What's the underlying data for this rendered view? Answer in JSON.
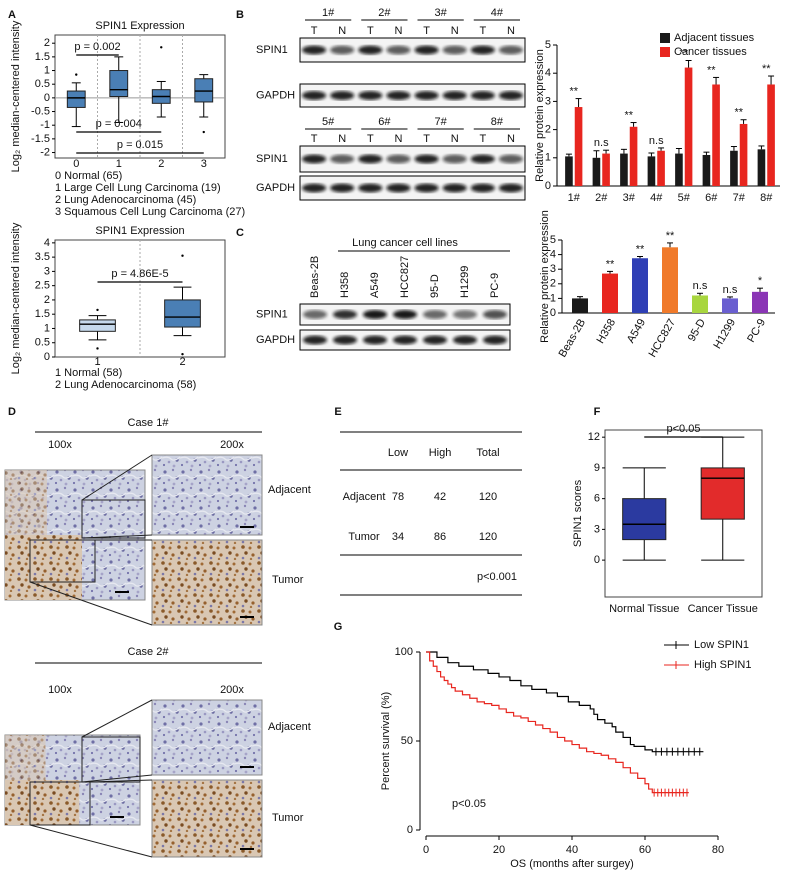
{
  "panel_labels": [
    "A",
    "B",
    "C",
    "D",
    "E",
    "F",
    "G"
  ],
  "chart_data": [
    {
      "type": "box",
      "title": "SPIN1 Expression",
      "ylabel": "Log₂ median-centered intensity",
      "categories": [
        "0",
        "1",
        "2",
        "3"
      ],
      "color": "#4a7fb5",
      "zero_line": true,
      "ylim": [
        -2.2,
        2.3
      ],
      "yticks": [
        -2,
        -1.5,
        -1,
        -0.5,
        0,
        0.5,
        1,
        1.5,
        2
      ],
      "boxes": [
        {
          "min": -1.05,
          "q1": -0.35,
          "median": 0,
          "q3": 0.25,
          "max": 0.55,
          "outliers": [
            0.85
          ]
        },
        {
          "min": -0.9,
          "q1": 0.05,
          "median": 0.3,
          "q3": 1.0,
          "max": 1.5,
          "outliers": []
        },
        {
          "min": -0.7,
          "q1": -0.2,
          "median": 0.05,
          "q3": 0.3,
          "max": 0.6,
          "outliers": [
            1.85
          ]
        },
        {
          "min": -0.7,
          "q1": -0.15,
          "median": 0.25,
          "q3": 0.7,
          "max": 0.85,
          "outliers": [
            -1.25
          ]
        }
      ],
      "annotations": [
        "p = 0.002",
        "p = 0.004",
        "p = 0.015"
      ],
      "notes": [
        "0 Normal (65)",
        "1 Large Cell Lung Carcinoma (19)",
        "2 Lung Adenocarcinoma (45)",
        "3 Squamous Cell Lung Carcinoma (27)"
      ]
    },
    {
      "type": "box",
      "title": "SPIN1 Expression",
      "ylabel": "Log₂ median-centered intensity",
      "categories": [
        "1",
        "2"
      ],
      "colors": [
        "#c6d9ec",
        "#4a7fb5"
      ],
      "ylim": [
        0,
        4.1
      ],
      "yticks": [
        0,
        0.5,
        1,
        1.5,
        2,
        2.5,
        3,
        3.5,
        4
      ],
      "boxes": [
        {
          "min": 0.6,
          "q1": 0.9,
          "median": 1.15,
          "q3": 1.3,
          "max": 1.45,
          "outliers": [
            1.65,
            0.3
          ]
        },
        {
          "min": 0.75,
          "q1": 1.05,
          "median": 1.4,
          "q3": 2.0,
          "max": 2.45,
          "outliers": [
            3.55,
            0.1
          ]
        }
      ],
      "annotations": [
        "p = 4.86E-5"
      ],
      "notes": [
        "1 Normal (58)",
        "2 Lung Adenocarcinoma (58)"
      ]
    },
    {
      "type": "bar",
      "ylabel": "Relative protein expression",
      "categories": [
        "1#",
        "2#",
        "3#",
        "4#",
        "5#",
        "6#",
        "7#",
        "8#"
      ],
      "ylim": [
        0,
        5
      ],
      "yticks": [
        0,
        1,
        2,
        3,
        4,
        5
      ],
      "series": [
        {
          "name": "Adjacent tissues",
          "color": "#1a1a1a",
          "values": [
            1.05,
            1.0,
            1.15,
            1.05,
            1.15,
            1.1,
            1.25,
            1.3
          ],
          "errors": [
            0.08,
            0.25,
            0.15,
            0.12,
            0.18,
            0.1,
            0.15,
            0.12
          ]
        },
        {
          "name": "Cancer tissues",
          "color": "#e8261f",
          "values": [
            2.8,
            1.15,
            2.1,
            1.25,
            4.2,
            3.6,
            2.2,
            3.6
          ],
          "errors": [
            0.3,
            0.12,
            0.15,
            0.1,
            0.25,
            0.25,
            0.15,
            0.3
          ]
        }
      ],
      "sig": [
        "**",
        "n.s",
        "**",
        "n.s",
        "**",
        "**",
        "**",
        "**"
      ]
    },
    {
      "type": "bar",
      "ylabel": "Relative protein expression",
      "categories": [
        "Beas-2B",
        "H358",
        "A549",
        "HCC827",
        "95-D",
        "H1299",
        "PC-9"
      ],
      "ylim": [
        0,
        5
      ],
      "yticks": [
        0,
        1,
        2,
        3,
        4,
        5
      ],
      "values": [
        1.0,
        2.7,
        3.75,
        4.5,
        1.2,
        1.0,
        1.45
      ],
      "errors": [
        0.12,
        0.15,
        0.12,
        0.3,
        0.15,
        0.1,
        0.25
      ],
      "colors": [
        "#1a1a1a",
        "#e8261f",
        "#2f3fb5",
        "#f07a2a",
        "#a8d63f",
        "#6a5fd0",
        "#8a35b5"
      ],
      "sig": [
        null,
        "**",
        "**",
        "**",
        "n.s",
        "n.s",
        "*"
      ]
    },
    {
      "type": "box",
      "ylabel": "SPIN1  scores",
      "categories": [
        "Normal Tissue",
        "Cancer Tissue"
      ],
      "colors": [
        "#2b3aa0",
        "#e22b2b"
      ],
      "ylim": [
        -3.6,
        12.7
      ],
      "yticks": [
        0,
        3,
        6,
        9,
        12
      ],
      "boxes": [
        {
          "min": 0,
          "q1": 2,
          "median": 3.5,
          "q3": 6,
          "max": 9,
          "outliers": []
        },
        {
          "min": 0,
          "q1": 4,
          "median": 8,
          "q3": 9,
          "max": 12,
          "outliers": []
        }
      ],
      "annotations": [
        "p<0.05"
      ]
    },
    {
      "type": "km",
      "xlabel": "OS (months after surgey)",
      "ylabel": "Percent survival (%)",
      "xlim": [
        0,
        80
      ],
      "ylim": [
        0,
        100
      ],
      "xticks": [
        0,
        20,
        40,
        60,
        80
      ],
      "yticks": [
        0,
        50,
        100
      ],
      "annotation": "p<0.05",
      "series": [
        {
          "name": "Low SPIN1",
          "color": "#000000",
          "x": [
            0,
            3,
            6,
            9,
            13,
            17,
            20,
            23,
            26,
            29,
            33,
            36,
            39,
            42,
            45,
            46,
            47,
            49,
            51,
            52,
            54,
            56,
            57,
            60,
            62,
            76
          ],
          "values": [
            100,
            97,
            94,
            92,
            90,
            88,
            86,
            84,
            81,
            79,
            77,
            75,
            72,
            70,
            68,
            65,
            62,
            60,
            58,
            55,
            52,
            48,
            47,
            45,
            44,
            44
          ],
          "censored": [
            63,
            64.5,
            66,
            67.5,
            69,
            70.5,
            72,
            73.5,
            75
          ]
        },
        {
          "name": "High SPIN1",
          "color": "#e8261f",
          "x": [
            0,
            1,
            2,
            3,
            4,
            5,
            6,
            7,
            8,
            10,
            12,
            14,
            16,
            18,
            20,
            22,
            24,
            26,
            28,
            30,
            32,
            34,
            36,
            38,
            40,
            42,
            44,
            46,
            48,
            50,
            52,
            54,
            56,
            58,
            60,
            61,
            62,
            72
          ],
          "values": [
            100,
            95,
            92,
            89,
            86,
            84,
            82,
            80,
            78,
            76,
            74,
            72,
            71,
            70,
            68,
            66,
            64,
            63,
            61,
            59,
            57,
            55,
            52,
            50,
            48,
            46,
            44,
            43,
            42,
            40,
            38,
            35,
            32,
            29,
            26,
            23,
            21,
            21
          ],
          "censored": [
            62.5,
            63.5,
            64.5,
            65.5,
            66.5,
            67.5,
            68.5,
            69.5,
            70.5,
            71.5
          ]
        }
      ]
    }
  ],
  "blots": [
    {
      "groups": [
        "1#",
        "2#",
        "3#",
        "4#"
      ],
      "lanes": [
        "T",
        "N"
      ],
      "rows": [
        "SPIN1",
        "GAPDH"
      ]
    },
    {
      "groups": [
        "5#",
        "6#",
        "7#",
        "8#"
      ],
      "lanes": [
        "T",
        "N"
      ],
      "rows": [
        "SPIN1",
        "GAPDH"
      ]
    },
    {
      "title": "Lung cancer cell lines",
      "lanes": [
        "Beas-2B",
        "H358",
        "A549",
        "HCC827",
        "95-D",
        "H1299",
        "PC-9"
      ],
      "rows": [
        "SPIN1",
        "GAPDH"
      ]
    }
  ],
  "ihc": {
    "cases": [
      "Case 1#",
      "Case 2#"
    ],
    "magnifications": [
      "100x",
      "200x"
    ],
    "regions": [
      "Adjacent",
      "Tumor"
    ]
  },
  "table": {
    "header": [
      "Low",
      "High",
      "Total"
    ],
    "rows": [
      [
        "Adjacent",
        78,
        42,
        120
      ],
      [
        "Tumor",
        34,
        86,
        120
      ]
    ],
    "footnote": "p<0.001"
  }
}
